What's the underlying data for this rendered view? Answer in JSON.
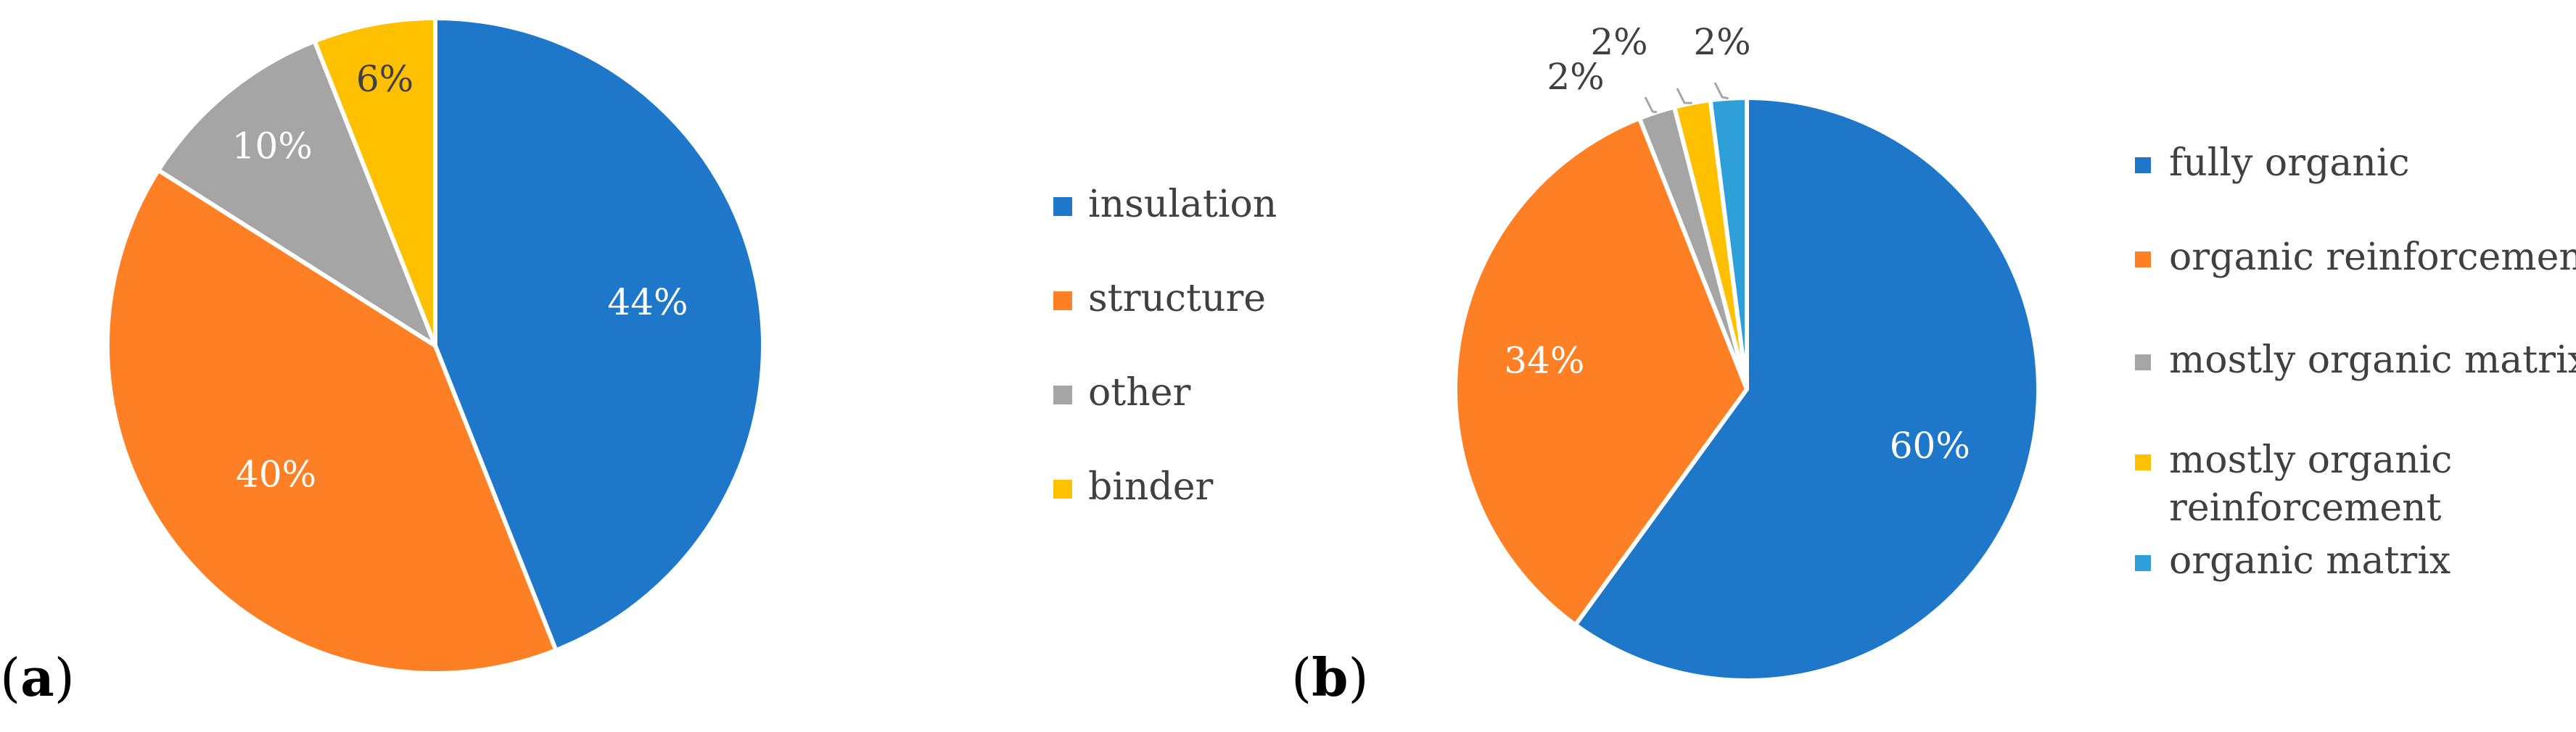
{
  "chart_data": [
    {
      "type": "pie",
      "panel_label": "a",
      "start_angle_deg": 0,
      "direction": "clockwise",
      "slices": [
        {
          "name": "insulation",
          "value": 44,
          "label": "44%",
          "color": "#1F77C9"
        },
        {
          "name": "structure",
          "value": 40,
          "label": "40%",
          "color": "#FF7F24"
        },
        {
          "name": "other",
          "value": 10,
          "label": "10%",
          "color": "#A5A5A5"
        },
        {
          "name": "binder",
          "value": 6,
          "label": "6%",
          "color": "#FFC000"
        }
      ],
      "legend": {
        "position": "right",
        "entries": [
          "insulation",
          "structure",
          "other",
          "binder"
        ]
      }
    },
    {
      "type": "pie",
      "panel_label": "b",
      "start_angle_deg": 0,
      "direction": "clockwise",
      "slices": [
        {
          "name": "fully organic",
          "value": 60,
          "label": "60%",
          "color": "#1F77C9"
        },
        {
          "name": "organic reinforcement",
          "value": 34,
          "label": "34%",
          "color": "#FF7F24"
        },
        {
          "name": "mostly organic matrix",
          "value": 2,
          "label": "2%",
          "color": "#A5A5A5"
        },
        {
          "name": "mostly organic reinforcement",
          "value": 2,
          "label": "2%",
          "color": "#FFC000"
        },
        {
          "name": "organic matrix",
          "value": 2,
          "label": "2%",
          "color": "#2E9FD8"
        }
      ],
      "legend": {
        "position": "right",
        "entries": [
          [
            "fully organic"
          ],
          [
            "organic reinforcement"
          ],
          [
            "mostly organic matrix"
          ],
          [
            "mostly organic",
            "reinforcement"
          ],
          [
            "organic matrix"
          ]
        ]
      }
    }
  ],
  "colors": {
    "slice_border": "#FFFFFF",
    "label_light": "#FFFFFF",
    "label_dark": "#404040",
    "leader_line": "#A6A6A6"
  }
}
